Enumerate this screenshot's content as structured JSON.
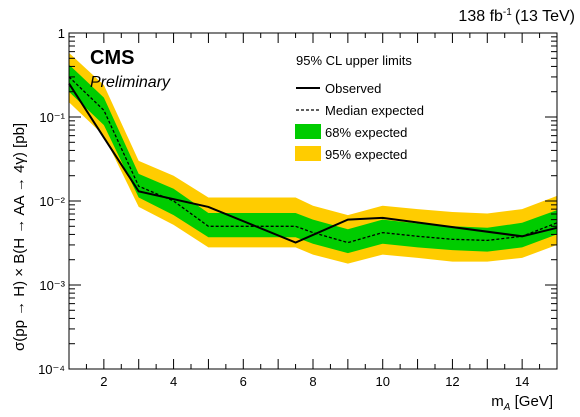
{
  "chart_data": {
    "type": "line",
    "luminosity": "138 fb",
    "lumi_exp": "-1",
    "energy": "(13 TeV)",
    "experiment": "CMS",
    "status": "Preliminary",
    "legend_title": "95% CL upper limits",
    "xlabel": "m",
    "xlabel_sub": "A",
    "xlabel_unit": " [GeV]",
    "ylabel": "σ(pp → H) × B(H → AA → 4γ) [pb]",
    "xlim": [
      1,
      15
    ],
    "ylim": [
      0.0001,
      1
    ],
    "yscale": "log",
    "x_ticks": [
      "2",
      "4",
      "6",
      "8",
      "10",
      "12",
      "14"
    ],
    "y_ticks": [
      "10⁻⁴",
      "10⁻³",
      "10⁻²",
      "10⁻¹",
      "1"
    ],
    "series": [
      {
        "name": "Observed",
        "x": [
          1,
          3,
          5,
          7.5,
          9,
          10,
          14,
          15
        ],
        "y": [
          0.25,
          0.013,
          0.0085,
          0.0032,
          0.006,
          0.0063,
          0.0038,
          0.0048
        ]
      },
      {
        "name": "Median expected",
        "x": [
          1,
          2,
          3,
          4,
          5,
          6,
          7,
          7.5,
          8,
          9,
          10,
          11,
          12,
          13,
          14,
          15
        ],
        "y": [
          0.3,
          0.12,
          0.015,
          0.01,
          0.005,
          0.005,
          0.005,
          0.005,
          0.0042,
          0.0032,
          0.0042,
          0.0038,
          0.0035,
          0.0034,
          0.0038,
          0.0055
        ]
      },
      {
        "name": "68% expected",
        "x": [
          1,
          2,
          3,
          4,
          5,
          6,
          7,
          7.5,
          8,
          9,
          10,
          11,
          12,
          13,
          14,
          15
        ],
        "lower": [
          0.2,
          0.08,
          0.011,
          0.0068,
          0.0037,
          0.0037,
          0.0037,
          0.0037,
          0.0031,
          0.0024,
          0.0031,
          0.0028,
          0.0026,
          0.0025,
          0.0028,
          0.004
        ],
        "upper": [
          0.42,
          0.17,
          0.021,
          0.014,
          0.0072,
          0.0072,
          0.0072,
          0.0072,
          0.006,
          0.0046,
          0.006,
          0.0054,
          0.005,
          0.0048,
          0.0055,
          0.0078
        ]
      },
      {
        "name": "95% expected",
        "x": [
          1,
          2,
          3,
          4,
          5,
          6,
          7,
          7.5,
          8,
          9,
          10,
          11,
          12,
          13,
          14,
          15
        ],
        "lower": [
          0.15,
          0.06,
          0.0085,
          0.0052,
          0.0028,
          0.0028,
          0.0028,
          0.0028,
          0.0023,
          0.0018,
          0.0023,
          0.0021,
          0.0019,
          0.0019,
          0.0021,
          0.003
        ],
        "upper": [
          0.58,
          0.24,
          0.03,
          0.02,
          0.011,
          0.011,
          0.011,
          0.011,
          0.0088,
          0.0068,
          0.0088,
          0.008,
          0.0074,
          0.0071,
          0.008,
          0.0115
        ]
      }
    ],
    "colors": {
      "observed": "#000000",
      "expected": "#000000",
      "band68": "#00cc00",
      "band95": "#ffcc00"
    }
  }
}
